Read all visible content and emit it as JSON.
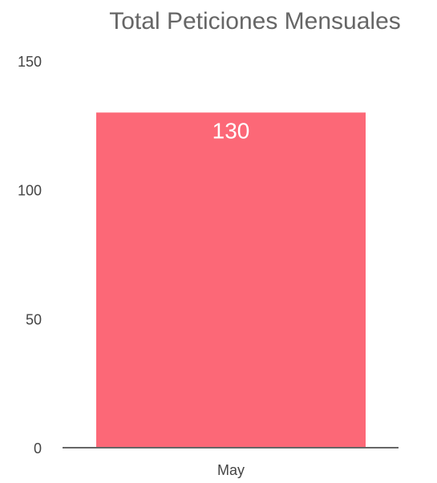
{
  "chart_data": {
    "type": "bar",
    "title": "Total Peticiones Mensuales",
    "categories": [
      "May"
    ],
    "values": [
      130
    ],
    "y_ticks": [
      "0",
      "50",
      "100",
      "150"
    ],
    "ylim": [
      0,
      150
    ],
    "data_labels": [
      "130"
    ],
    "grid": false,
    "colors": {
      "bar": "#fc6877",
      "axis": "#666666",
      "title": "#666666",
      "tick_label": "#444444",
      "data_label": "#ffffff"
    }
  }
}
